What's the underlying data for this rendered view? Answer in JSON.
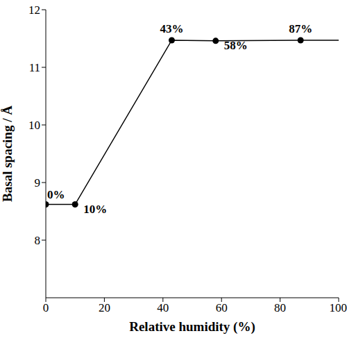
{
  "chart_data": {
    "type": "line",
    "x_label": "Relative humidity (%)",
    "y_label": "Basal spacing / Å",
    "xlim": [
      0,
      100
    ],
    "xticks": [
      0,
      20,
      40,
      60,
      80,
      100
    ],
    "ylim": [
      7,
      12
    ],
    "yticks": [
      8,
      9,
      10,
      11,
      12
    ],
    "grid": false,
    "series": [
      {
        "type": "line",
        "color": "#000000",
        "marker": "none",
        "line_style": "solid",
        "x": [
          0,
          10,
          43,
          58,
          87,
          100
        ],
        "values": [
          8.62,
          8.62,
          11.47,
          11.46,
          11.47,
          11.47
        ]
      },
      {
        "type": "scatter",
        "color": "#000000",
        "marker": "circle",
        "x": [
          0,
          10,
          43,
          58,
          87
        ],
        "values": [
          8.62,
          8.62,
          11.47,
          11.46,
          11.47
        ]
      }
    ],
    "annotations": [
      {
        "text": "0%",
        "x": 0,
        "y": 8.62
      },
      {
        "text": "10%",
        "x": 10,
        "y": 8.62
      },
      {
        "text": "43%",
        "x": 43,
        "y": 11.47
      },
      {
        "text": "58%",
        "x": 58,
        "y": 11.46
      },
      {
        "text": "87%",
        "x": 87,
        "y": 11.47
      }
    ]
  }
}
